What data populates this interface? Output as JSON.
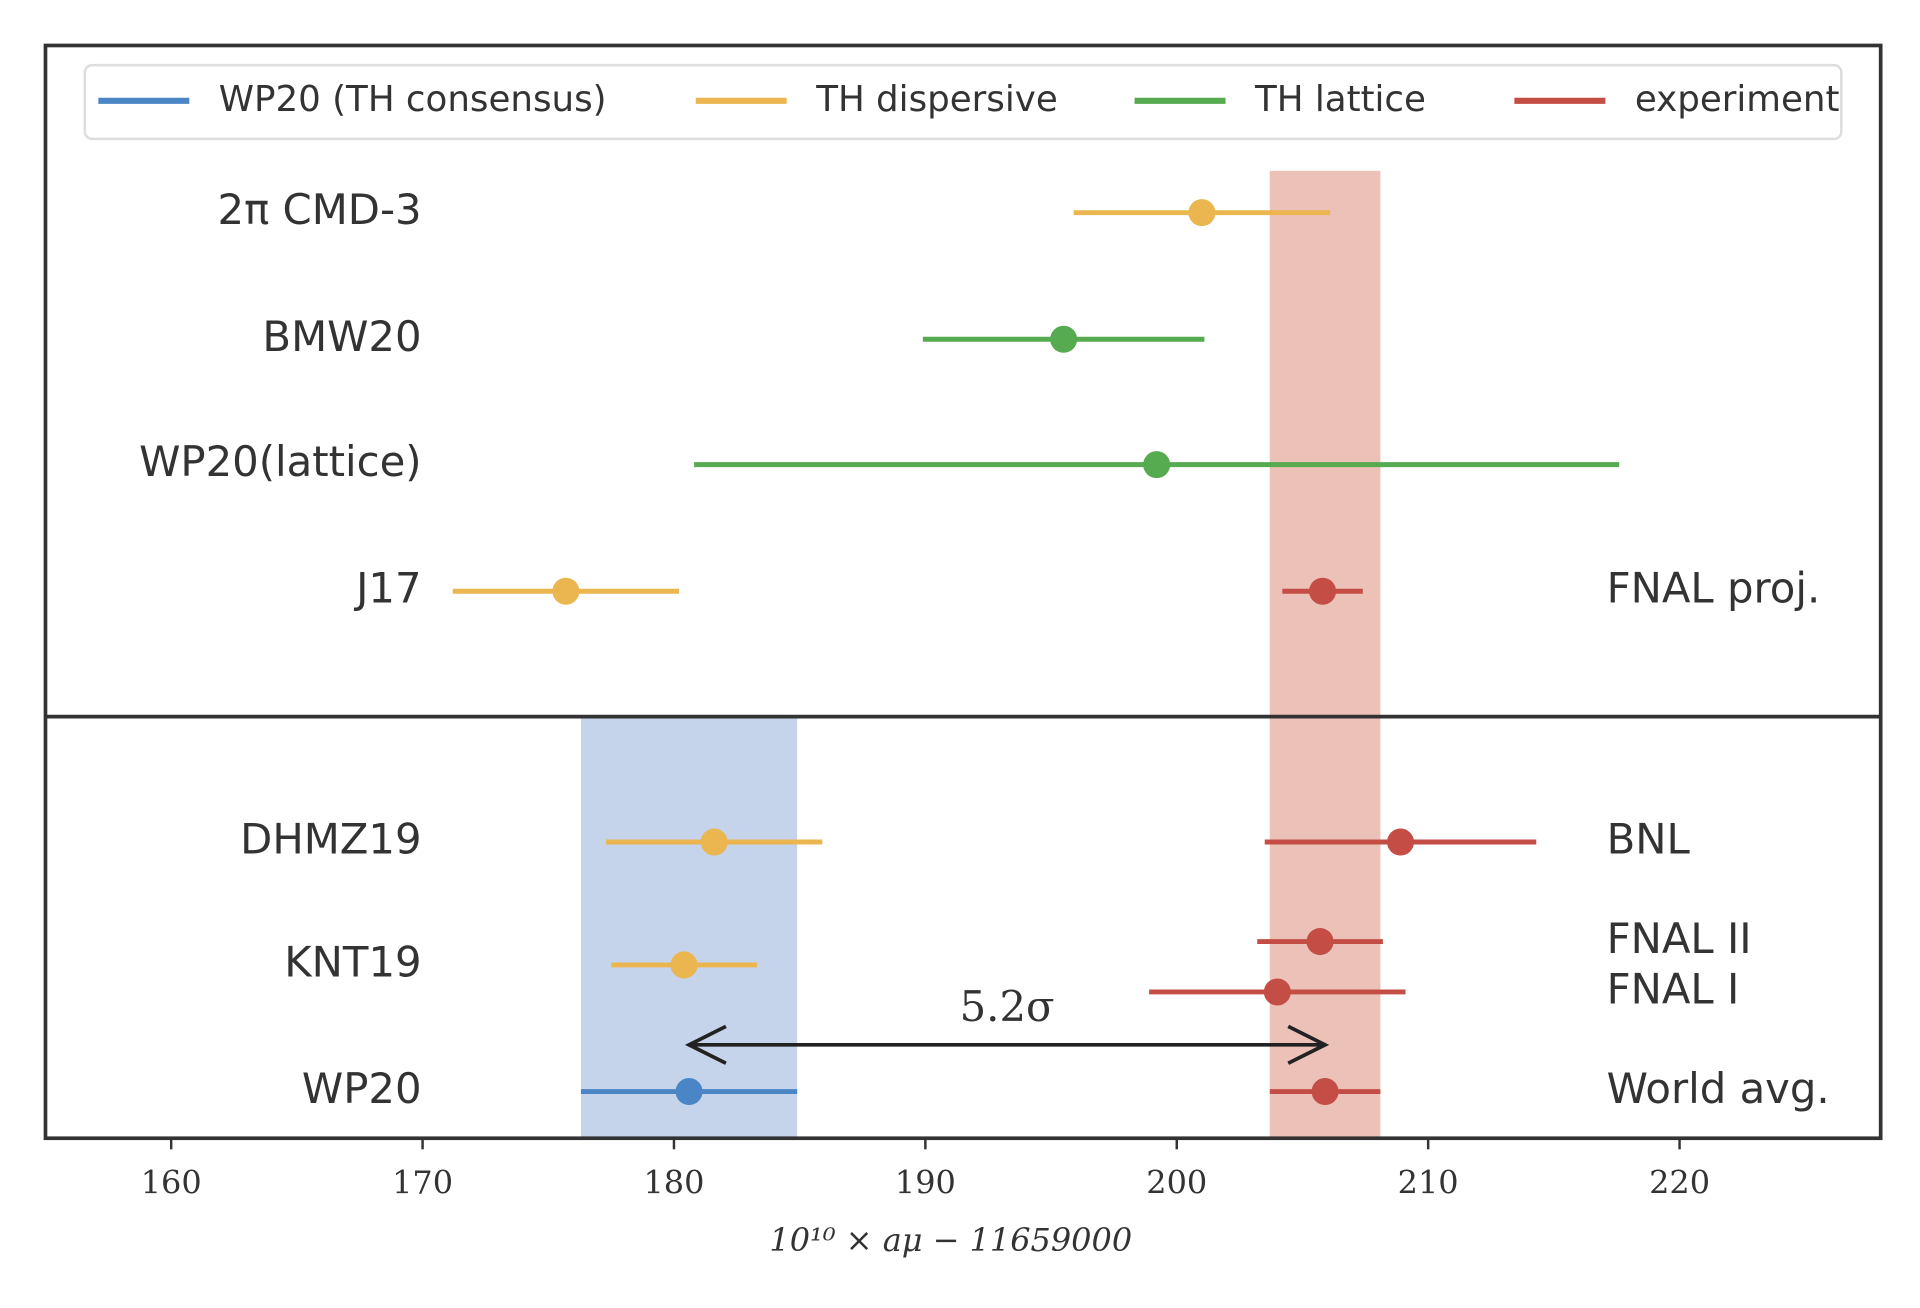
{
  "chart_data": {
    "type": "errorbar",
    "xlabel": "10¹⁰ × aμ − 11659000",
    "annotation": "5.2σ",
    "xlim": [
      155,
      228
    ],
    "xticks": [
      160,
      170,
      180,
      190,
      200,
      210,
      220
    ],
    "legend": "top",
    "series": [
      {
        "name": "WP20 (TH consensus)",
        "color": "#4a86c5",
        "labels": [
          "WP20"
        ],
        "values": [
          180.6
        ],
        "errors": [
          4.3
        ]
      },
      {
        "name": "TH dispersive",
        "color": "#ebb54f",
        "labels": [
          "2π CMD-3",
          "J17",
          "DHMZ19",
          "KNT19"
        ],
        "values": [
          201.0,
          175.7,
          181.6,
          180.4
        ],
        "errors": [
          5.1,
          4.5,
          4.3,
          2.9
        ]
      },
      {
        "name": "TH lattice",
        "color": "#56aa4f",
        "labels": [
          "BMW20",
          "WP20(lattice)"
        ],
        "values": [
          195.5,
          199.2
        ],
        "errors": [
          5.6,
          18.4
        ]
      },
      {
        "name": "experiment",
        "color": "#c44e45",
        "labels": [
          "FNAL proj.",
          "BNL",
          "FNAL II",
          "FNAL I",
          "World avg."
        ],
        "values": [
          205.8,
          208.9,
          205.7,
          204.0,
          205.9
        ],
        "errors": [
          1.6,
          5.4,
          2.5,
          5.1,
          2.2
        ]
      }
    ]
  }
}
